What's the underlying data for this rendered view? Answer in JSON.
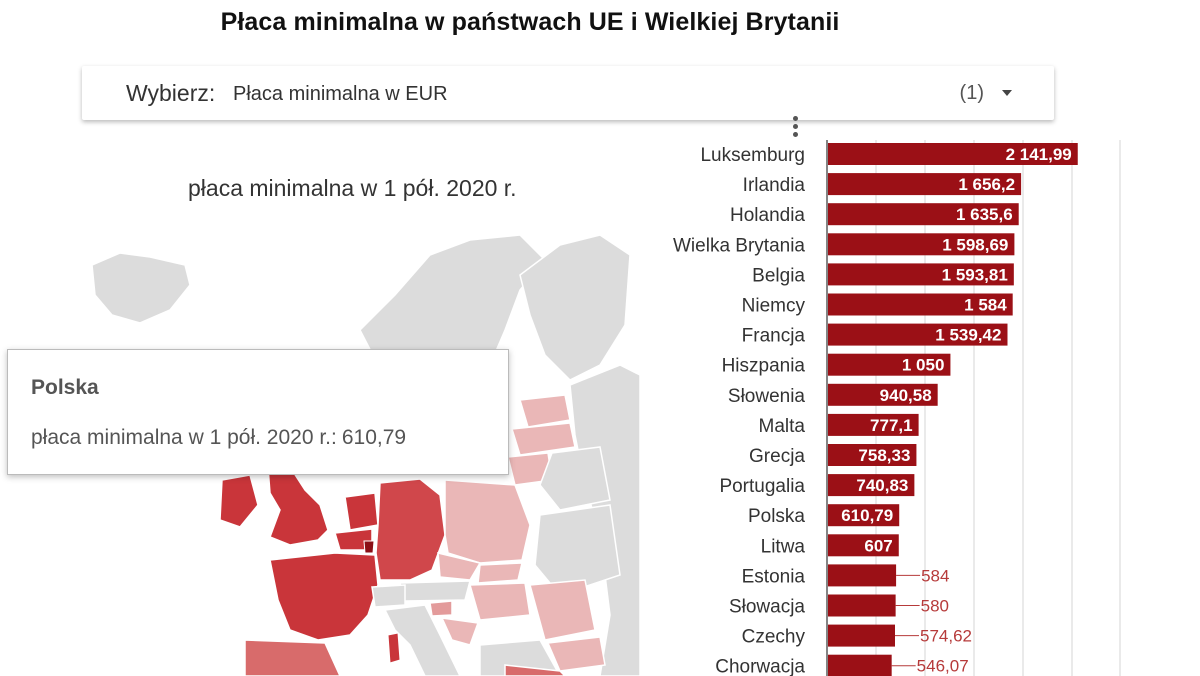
{
  "title": "Płaca minimalna w państwach UE i Wielkiej Brytanii",
  "selector": {
    "label": "Wybierz",
    "separator": ":",
    "value": "Płaca minimalna w EUR",
    "count": "(1)"
  },
  "map": {
    "title": "płaca minimalna w 1 pół. 2020 r.",
    "colors": {
      "high": "#c9353a",
      "mid": "#d86b6b",
      "low": "#eab7b7",
      "none": "#dcdcdc",
      "lux": "#8b0f16"
    }
  },
  "tooltip": {
    "country": "Polska",
    "metric": "płaca minimalna w 1 pół. 2020 r.",
    "separator": ":",
    "value": "610,79"
  },
  "chart_data": {
    "type": "bar",
    "orientation": "horizontal",
    "bar_color": "#9b1016",
    "categories": [
      "Luksemburg",
      "Irlandia",
      "Holandia",
      "Wielka Brytania",
      "Belgia",
      "Niemcy",
      "Francja",
      "Hiszpania",
      "Słowenia",
      "Malta",
      "Grecja",
      "Portugalia",
      "Polska",
      "Litwa",
      "Estonia",
      "Słowacja",
      "Czechy",
      "Chorwacja"
    ],
    "values": [
      2141.99,
      1656.2,
      1635.6,
      1598.69,
      1593.81,
      1584,
      1539.42,
      1050,
      940.58,
      777.1,
      758.33,
      740.83,
      610.79,
      607,
      584,
      580,
      574.62,
      546.07
    ],
    "labels": [
      "2 141,99",
      "1 656,2",
      "1 635,6",
      "1 598,69",
      "1 593,81",
      "1 584",
      "1 539,42",
      "1 050",
      "940,58",
      "777,1",
      "758,33",
      "740,83",
      "610,79",
      "607",
      "584",
      "580",
      "574,62",
      "546,07"
    ],
    "xlim": [
      0,
      2500
    ],
    "grid": true
  }
}
